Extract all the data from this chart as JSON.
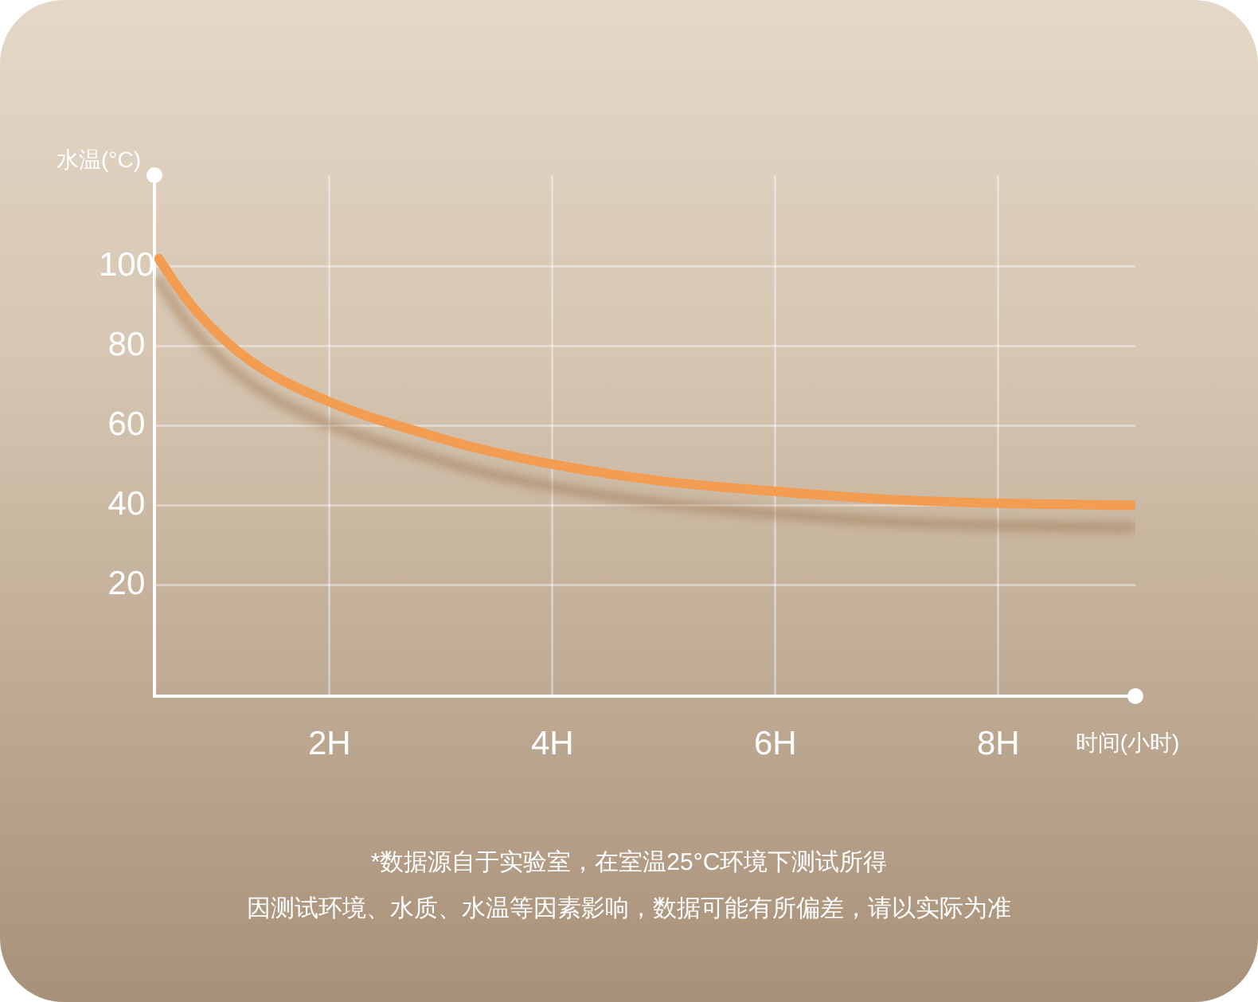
{
  "chart_data": {
    "type": "line",
    "xlabel": "时间(小时)",
    "ylabel": "水温(°C)",
    "x": [
      0.47,
      0.61,
      0.8,
      1.04,
      1.28,
      1.57,
      2,
      2.33,
      2.8,
      3.19,
      4,
      5,
      6,
      7,
      8,
      9.2
    ],
    "values": [
      102,
      96,
      89,
      82,
      76.5,
      71.5,
      66,
      62.5,
      58.5,
      55.3,
      50.3,
      46,
      43.5,
      41.5,
      40.5,
      40
    ],
    "color": "#f29d52",
    "xlim": [
      0.43,
      9.23
    ],
    "ylim": [
      -8,
      123
    ],
    "xticks": [
      {
        "value": 2,
        "label": "2H"
      },
      {
        "value": 4,
        "label": "4H"
      },
      {
        "value": 6,
        "label": "6H"
      },
      {
        "value": 8,
        "label": "8H"
      }
    ],
    "yticks": [
      20,
      40,
      60,
      80,
      100
    ],
    "grid": true,
    "legend": false,
    "marker": "none",
    "line_style": "solid",
    "annotations": [
      "*数据源自于实验室，在室温25°C环境下测试所得",
      "因测试环境、水质、水温等因素影响，数据可能有所偏差，请以实际为准"
    ]
  }
}
